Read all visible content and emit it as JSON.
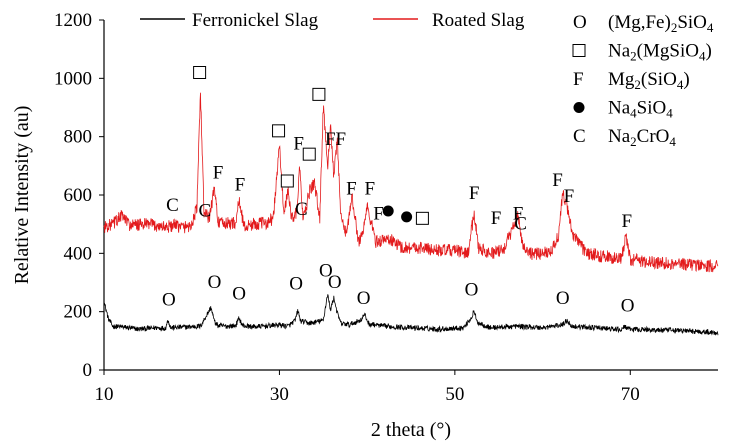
{
  "chart_data": {
    "type": "line",
    "title": "",
    "xlabel": "2 theta (°)",
    "ylabel": "Relative Intensity (au)",
    "xlim": [
      10,
      80
    ],
    "ylim": [
      0,
      1200
    ],
    "x_ticks": [
      "10",
      "30",
      "50",
      "70"
    ],
    "x_tick_values": [
      10,
      30,
      50,
      70
    ],
    "y_ticks": [
      "0",
      "200",
      "400",
      "600",
      "800",
      "1000",
      "1200"
    ],
    "y_tick_values": [
      0,
      200,
      400,
      600,
      800,
      1000,
      1200
    ],
    "grid": false,
    "legend_position": "top",
    "series": [
      {
        "name": "Ferronickel Slag",
        "color": "#000000",
        "x": [
          10,
          10.5,
          11,
          12,
          14,
          16,
          17,
          17.3,
          17.6,
          19,
          21,
          22.2,
          22.6,
          23,
          24,
          25,
          25.4,
          25.8,
          27,
          29,
          30,
          31,
          31.8,
          32.1,
          32.4,
          33.5,
          35,
          35.5,
          35.8,
          36.2,
          36.6,
          37,
          38,
          39.3,
          39.7,
          40.2,
          42,
          45,
          48,
          51,
          51.9,
          52.2,
          52.5,
          54,
          57,
          60,
          62.3,
          62.8,
          63.3,
          66,
          69,
          69.4,
          69.8,
          72,
          76,
          80
        ],
        "y": [
          235,
          175,
          150,
          148,
          140,
          145,
          143,
          172,
          145,
          147,
          150,
          215,
          165,
          152,
          150,
          152,
          178,
          152,
          148,
          152,
          155,
          150,
          170,
          205,
          168,
          160,
          170,
          262,
          205,
          248,
          195,
          160,
          155,
          172,
          190,
          158,
          150,
          145,
          140,
          145,
          180,
          202,
          165,
          145,
          150,
          145,
          155,
          172,
          150,
          145,
          138,
          150,
          140,
          138,
          135,
          128
        ]
      },
      {
        "name": "Roated Slag",
        "color": "#e31a1c",
        "x": [
          10,
          11,
          12,
          13,
          15,
          17,
          18,
          19,
          20,
          20.6,
          21.0,
          21.4,
          22.0,
          22.6,
          23.0,
          23.5,
          25.0,
          25.4,
          26.0,
          27,
          28.5,
          29.3,
          30.0,
          30.5,
          31.0,
          31.4,
          32.0,
          32.3,
          32.7,
          33.5,
          34.0,
          34.6,
          35.0,
          35.5,
          35.8,
          36.2,
          36.6,
          37.0,
          37.6,
          38.3,
          39.0,
          39.5,
          40.0,
          41.0,
          42.5,
          44.0,
          46.0,
          48.0,
          50.0,
          51.5,
          52.2,
          52.7,
          54.0,
          55.5,
          56.5,
          57.2,
          57.8,
          59.0,
          61.0,
          61.8,
          62.3,
          62.8,
          63.5,
          65.0,
          67.0,
          69.0,
          69.5,
          70.0,
          72.0,
          75.0,
          78.0,
          80.0
        ],
        "y": [
          490,
          500,
          530,
          495,
          500,
          490,
          495,
          490,
          495,
          560,
          955,
          540,
          520,
          625,
          510,
          500,
          505,
          580,
          490,
          500,
          505,
          520,
          770,
          540,
          610,
          520,
          545,
          700,
          510,
          620,
          640,
          520,
          905,
          700,
          840,
          660,
          790,
          520,
          470,
          590,
          440,
          470,
          560,
          440,
          450,
          420,
          420,
          410,
          410,
          400,
          540,
          420,
          400,
          410,
          480,
          530,
          420,
          395,
          410,
          460,
          605,
          560,
          460,
          400,
          390,
          380,
          460,
          380,
          370,
          365,
          360,
          355
        ]
      }
    ],
    "peak_labels": [
      {
        "text": "C",
        "x": 17.8,
        "y": 570
      },
      {
        "text": "C",
        "x": 21.5,
        "y": 550
      },
      {
        "text": "F",
        "x": 23.0,
        "y": 680
      },
      {
        "text": "F",
        "x": 25.5,
        "y": 640
      },
      {
        "text": "F",
        "x": 32.2,
        "y": 780
      },
      {
        "text": "C",
        "x": 32.5,
        "y": 555
      },
      {
        "text": "F",
        "x": 35.8,
        "y": 795
      },
      {
        "text": "F",
        "x": 37.0,
        "y": 795
      },
      {
        "text": "F",
        "x": 38.2,
        "y": 625
      },
      {
        "text": "F",
        "x": 40.3,
        "y": 625
      },
      {
        "text": "F",
        "x": 41.3,
        "y": 540
      },
      {
        "text": "F",
        "x": 52.2,
        "y": 610
      },
      {
        "text": "F",
        "x": 54.7,
        "y": 525
      },
      {
        "text": "F",
        "x": 57.2,
        "y": 540
      },
      {
        "text": "C",
        "x": 57.5,
        "y": 505
      },
      {
        "text": "F",
        "x": 61.7,
        "y": 655
      },
      {
        "text": "F",
        "x": 63.0,
        "y": 600
      },
      {
        "text": "F",
        "x": 69.6,
        "y": 515
      },
      {
        "text": "O",
        "x": 17.4,
        "y": 245
      },
      {
        "text": "O",
        "x": 22.6,
        "y": 305
      },
      {
        "text": "O",
        "x": 25.4,
        "y": 265
      },
      {
        "text": "O",
        "x": 31.9,
        "y": 300
      },
      {
        "text": "O",
        "x": 35.3,
        "y": 345
      },
      {
        "text": "O",
        "x": 36.3,
        "y": 305
      },
      {
        "text": "O",
        "x": 39.6,
        "y": 250
      },
      {
        "text": "O",
        "x": 51.9,
        "y": 280
      },
      {
        "text": "O",
        "x": 62.3,
        "y": 250
      },
      {
        "text": "O",
        "x": 69.7,
        "y": 225
      }
    ],
    "peak_markers": [
      {
        "shape": "square",
        "x": 20.9,
        "y": 1020
      },
      {
        "shape": "square",
        "x": 29.9,
        "y": 820
      },
      {
        "shape": "square",
        "x": 30.9,
        "y": 648
      },
      {
        "shape": "square",
        "x": 33.4,
        "y": 740
      },
      {
        "shape": "square",
        "x": 34.5,
        "y": 945
      },
      {
        "shape": "square",
        "x": 46.3,
        "y": 520
      },
      {
        "shape": "circle",
        "x": 42.4,
        "y": 545
      },
      {
        "shape": "circle",
        "x": 44.5,
        "y": 525
      }
    ]
  },
  "legend": {
    "series": [
      {
        "label": "Ferronickel Slag",
        "color": "#000000"
      },
      {
        "label": "Roated Slag",
        "color": "#e31a1c"
      }
    ],
    "phases": [
      {
        "symbol": "O",
        "marker": "letter",
        "parts": [
          {
            "t": "(Mg,Fe)"
          },
          {
            "t": "2",
            "sub": true
          },
          {
            "t": "SiO"
          },
          {
            "t": "4",
            "sub": true
          }
        ]
      },
      {
        "symbol": "□",
        "marker": "square",
        "parts": [
          {
            "t": "Na"
          },
          {
            "t": "2",
            "sub": true
          },
          {
            "t": "(MgSiO"
          },
          {
            "t": "4",
            "sub": true
          },
          {
            "t": ")"
          }
        ]
      },
      {
        "symbol": "F",
        "marker": "letter",
        "parts": [
          {
            "t": "Mg"
          },
          {
            "t": "2",
            "sub": true
          },
          {
            "t": "(SiO"
          },
          {
            "t": "4",
            "sub": true
          },
          {
            "t": ")"
          }
        ]
      },
      {
        "symbol": "●",
        "marker": "circle",
        "parts": [
          {
            "t": "Na"
          },
          {
            "t": "4",
            "sub": true
          },
          {
            "t": "SiO"
          },
          {
            "t": "4",
            "sub": true
          }
        ]
      },
      {
        "symbol": "C",
        "marker": "letter",
        "parts": [
          {
            "t": "Na"
          },
          {
            "t": "2",
            "sub": true
          },
          {
            "t": "CrO"
          },
          {
            "t": "4",
            "sub": true
          }
        ]
      }
    ]
  }
}
